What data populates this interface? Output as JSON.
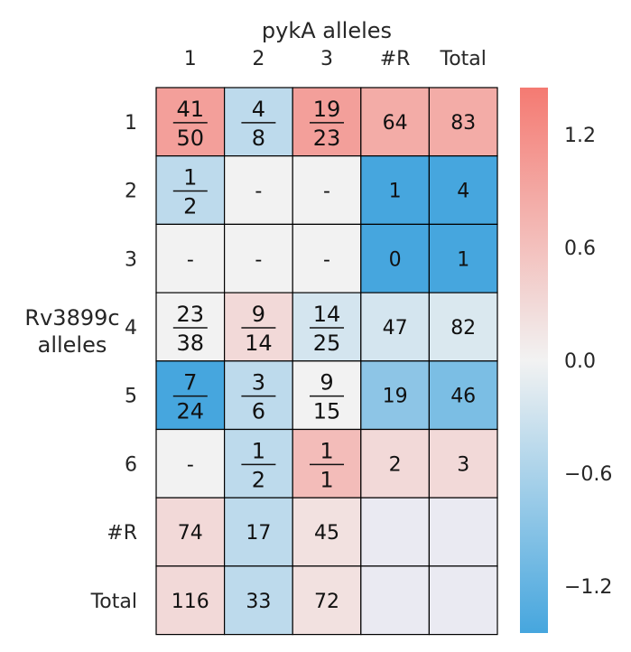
{
  "chart_data": {
    "type": "heatmap",
    "title": "pykA alleles",
    "ylabel": "Rv3899c alleles",
    "columns": [
      "1",
      "2",
      "3",
      "#R",
      "Total"
    ],
    "rows": [
      "1",
      "2",
      "3",
      "4",
      "5",
      "6",
      "#R",
      "Total"
    ],
    "cells": [
      [
        {
          "label": "41/50",
          "value": 1.0
        },
        {
          "label": "4/8",
          "value": -0.45
        },
        {
          "label": "19/23",
          "value": 1.0
        },
        {
          "label": "64",
          "value": 0.85
        },
        {
          "label": "83",
          "value": 0.85
        }
      ],
      [
        {
          "label": "1/2",
          "value": -0.45
        },
        {
          "label": "-",
          "value": 0.0
        },
        {
          "label": "-",
          "value": 0.0
        },
        {
          "label": "1",
          "value": -1.45
        },
        {
          "label": "4",
          "value": -1.45
        }
      ],
      [
        {
          "label": "-",
          "value": 0.0
        },
        {
          "label": "-",
          "value": 0.0
        },
        {
          "label": "-",
          "value": 0.0
        },
        {
          "label": "0",
          "value": -1.45
        },
        {
          "label": "1",
          "value": -1.45
        }
      ],
      [
        {
          "label": "23/38",
          "value": 0.0
        },
        {
          "label": "9/14",
          "value": 0.3
        },
        {
          "label": "14/25",
          "value": -0.25
        },
        {
          "label": "47",
          "value": -0.25
        },
        {
          "label": "82",
          "value": -0.2
        }
      ],
      [
        {
          "label": "7/24",
          "value": -1.45
        },
        {
          "label": "3/6",
          "value": -0.45
        },
        {
          "label": "9/15",
          "value": 0.0
        },
        {
          "label": "19",
          "value": -0.85
        },
        {
          "label": "46",
          "value": -1.0
        }
      ],
      [
        {
          "label": "-",
          "value": 0.0
        },
        {
          "label": "1/2",
          "value": -0.45
        },
        {
          "label": "1/1",
          "value": 0.65
        },
        {
          "label": "2",
          "value": 0.3
        },
        {
          "label": "3",
          "value": 0.3
        }
      ],
      [
        {
          "label": "74",
          "value": 0.3
        },
        {
          "label": "17",
          "value": -0.45
        },
        {
          "label": "45",
          "value": 0.2
        },
        {
          "label": "",
          "value": null
        },
        {
          "label": "",
          "value": null
        }
      ],
      [
        {
          "label": "116",
          "value": 0.3
        },
        {
          "label": "33",
          "value": -0.45
        },
        {
          "label": "72",
          "value": 0.2
        },
        {
          "label": "",
          "value": null
        },
        {
          "label": "",
          "value": null
        }
      ]
    ],
    "colorbar": {
      "range": [
        -1.45,
        1.45
      ],
      "ticks": [
        1.2,
        0.6,
        0.0,
        -0.6,
        -1.2
      ],
      "tick_labels": [
        "1.2",
        "0.6",
        "0.0",
        "−0.6",
        "−1.2"
      ],
      "colors": {
        "low": "#46a6de",
        "mid": "#f2f2f2",
        "high": "#f47a72"
      }
    },
    "empty_cell_color": "#eaeaf2",
    "grid_color": "#000000"
  }
}
